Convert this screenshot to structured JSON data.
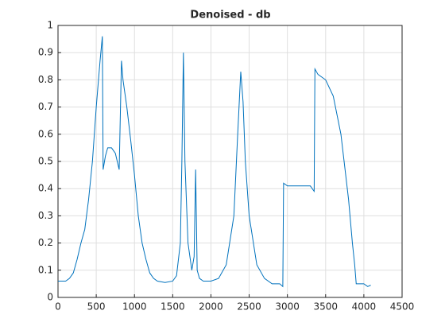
{
  "chart_data": {
    "type": "line",
    "title": "Denoised - db",
    "x": [
      0,
      100,
      150,
      200,
      250,
      300,
      350,
      400,
      450,
      500,
      550,
      580,
      590,
      620,
      650,
      700,
      750,
      800,
      830,
      850,
      900,
      950,
      1000,
      1050,
      1100,
      1150,
      1200,
      1250,
      1300,
      1400,
      1500,
      1550,
      1600,
      1620,
      1640,
      1660,
      1700,
      1750,
      1780,
      1800,
      1820,
      1850,
      1900,
      2000,
      2100,
      2200,
      2300,
      2350,
      2390,
      2420,
      2450,
      2500,
      2600,
      2700,
      2800,
      2900,
      2940,
      2950,
      3000,
      3100,
      3200,
      3300,
      3350,
      3360,
      3400,
      3500,
      3600,
      3700,
      3750,
      3800,
      3850,
      3880,
      3900,
      3950,
      4000,
      4050,
      4090
    ],
    "values": [
      0.06,
      0.06,
      0.07,
      0.09,
      0.14,
      0.2,
      0.25,
      0.36,
      0.5,
      0.7,
      0.87,
      0.96,
      0.47,
      0.52,
      0.55,
      0.55,
      0.53,
      0.47,
      0.87,
      0.8,
      0.7,
      0.58,
      0.45,
      0.3,
      0.2,
      0.14,
      0.09,
      0.07,
      0.06,
      0.055,
      0.06,
      0.08,
      0.2,
      0.5,
      0.9,
      0.5,
      0.2,
      0.1,
      0.15,
      0.47,
      0.1,
      0.07,
      0.06,
      0.06,
      0.07,
      0.12,
      0.3,
      0.6,
      0.83,
      0.72,
      0.5,
      0.3,
      0.12,
      0.07,
      0.05,
      0.05,
      0.04,
      0.42,
      0.41,
      0.41,
      0.41,
      0.41,
      0.39,
      0.84,
      0.82,
      0.8,
      0.74,
      0.6,
      0.48,
      0.36,
      0.2,
      0.12,
      0.05,
      0.05,
      0.05,
      0.04,
      0.045
    ],
    "color": "#0072bd",
    "xlim": [
      0,
      4500
    ],
    "xticks": [
      0,
      500,
      1000,
      1500,
      2000,
      2500,
      3000,
      3500,
      4000,
      4500
    ],
    "ylim": [
      0,
      1
    ],
    "yticks": [
      0,
      0.1,
      0.2,
      0.3,
      0.4,
      0.5,
      0.6,
      0.7,
      0.8,
      0.9,
      1
    ],
    "grid": true
  }
}
